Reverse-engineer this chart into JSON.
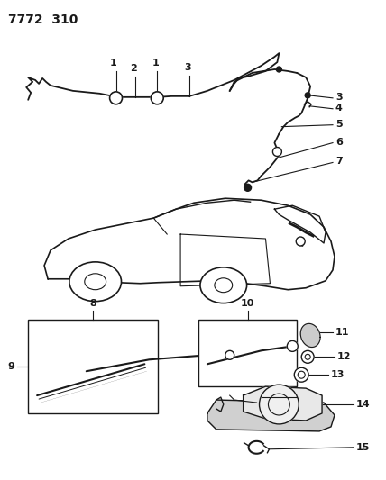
{
  "title_text": "7772  310",
  "bg_color": "#ffffff",
  "line_color": "#1a1a1a",
  "fig_width": 4.28,
  "fig_height": 5.33,
  "dpi": 100
}
